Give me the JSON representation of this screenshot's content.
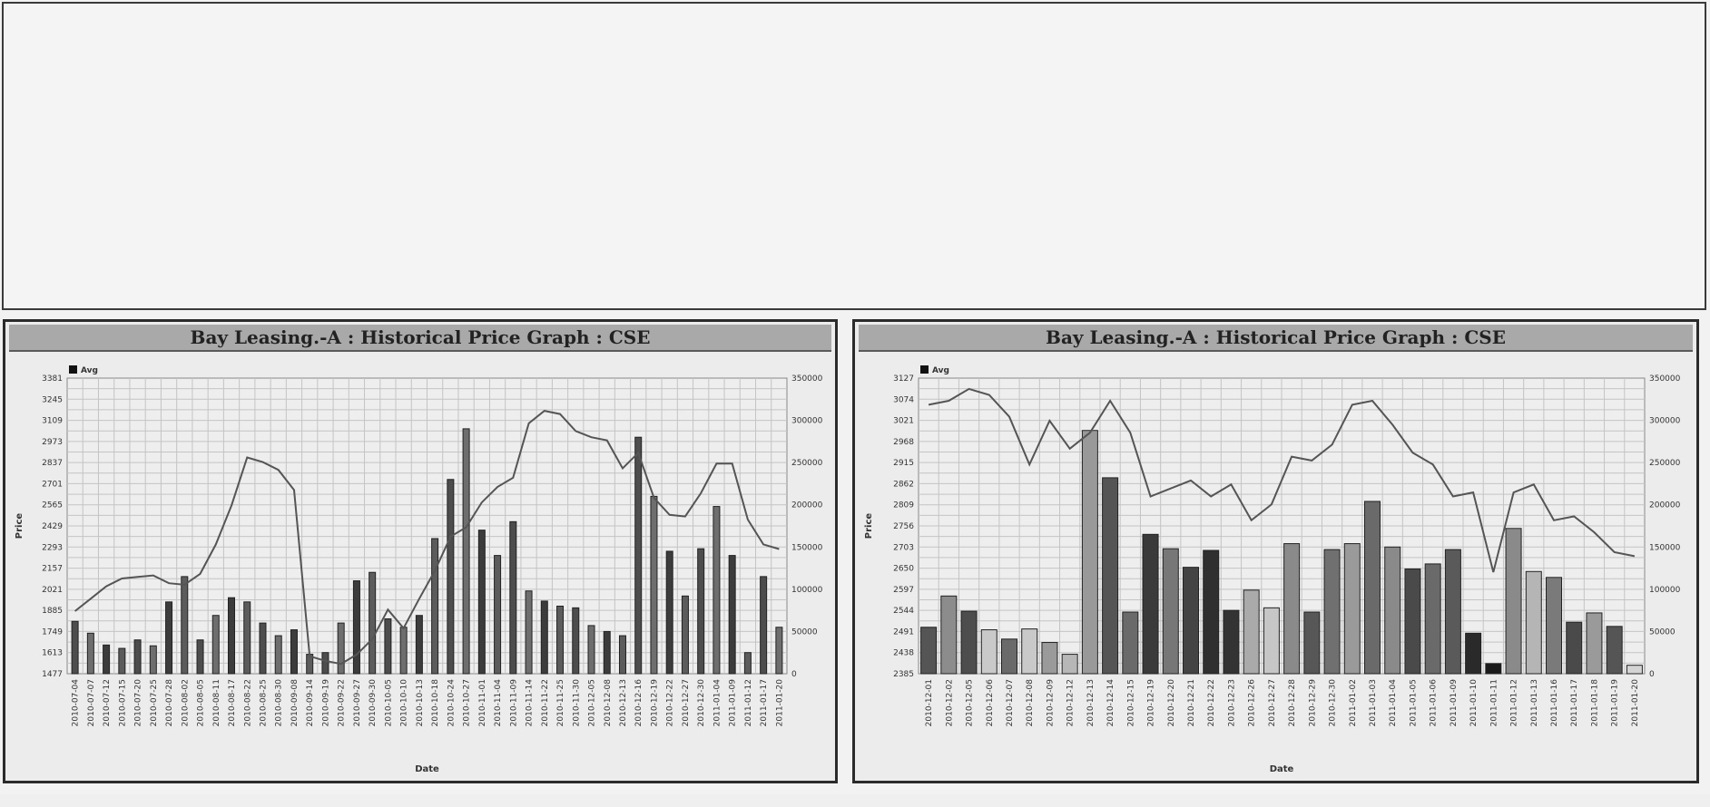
{
  "chart_data": [
    {
      "type": "bar",
      "title": "Bay Leasing.-A : Historical Price Graph : CSE",
      "legend": "Avg",
      "legend_position": "top-left",
      "xlabel": "Date",
      "ylabel": "Price",
      "grid": true,
      "y_ticks": [
        "1477",
        "1613",
        "1749",
        "1885",
        "2021",
        "2157",
        "2293",
        "2429",
        "2565",
        "2701",
        "2837",
        "2973",
        "3109",
        "3245",
        "3381"
      ],
      "y2_ticks": [
        "0",
        "50000",
        "100000",
        "150000",
        "200000",
        "250000",
        "300000",
        "350000"
      ],
      "ylim": [
        1477,
        3381
      ],
      "y2lim": [
        0,
        350000
      ],
      "x": [
        "2010-07-04",
        "2010-07-07",
        "2010-07-12",
        "2010-07-15",
        "2010-07-20",
        "2010-07-25",
        "2010-07-28",
        "2010-08-02",
        "2010-08-05",
        "2010-08-11",
        "2010-08-17",
        "2010-08-22",
        "2010-08-25",
        "2010-08-30",
        "2010-09-08",
        "2010-09-14",
        "2010-09-19",
        "2010-09-22",
        "2010-09-27",
        "2010-09-30",
        "2010-10-05",
        "2010-10-10",
        "2010-10-13",
        "2010-10-18",
        "2010-10-24",
        "2010-10-27",
        "2010-11-01",
        "2010-11-04",
        "2010-11-09",
        "2010-11-14",
        "2010-11-22",
        "2010-11-25",
        "2010-11-30",
        "2010-12-05",
        "2010-12-08",
        "2010-12-13",
        "2010-12-16",
        "2010-12-19",
        "2010-12-22",
        "2010-12-27",
        "2010-12-30",
        "2011-01-04",
        "2011-01-09",
        "2011-01-12",
        "2011-01-17",
        "2011-01-20"
      ],
      "line_values": [
        1880,
        1960,
        2040,
        2090,
        2100,
        2110,
        2060,
        2050,
        2120,
        2310,
        2560,
        2870,
        2840,
        2790,
        2660,
        1590,
        1560,
        1540,
        1600,
        1700,
        1890,
        1770,
        1960,
        2140,
        2360,
        2420,
        2580,
        2680,
        2740,
        3090,
        3170,
        3150,
        3040,
        3000,
        2980,
        2800,
        2900,
        2610,
        2500,
        2490,
        2640,
        2830,
        2830,
        2470,
        2310,
        2280
      ],
      "bar_values": [
        62000,
        48000,
        34000,
        30000,
        40000,
        33000,
        85000,
        115000,
        40000,
        69000,
        90000,
        85000,
        60000,
        45000,
        52000,
        23000,
        25000,
        60000,
        110000,
        120000,
        65000,
        55000,
        69000,
        160000,
        230000,
        290000,
        170000,
        140000,
        180000,
        98000,
        86000,
        80000,
        78000,
        57000,
        50000,
        45000,
        280000,
        210000,
        145000,
        92000,
        148000,
        198000,
        140000,
        25000,
        115000,
        55000
      ]
    },
    {
      "type": "bar",
      "title": "Bay Leasing.-A : Historical Price Graph : CSE",
      "legend": "Avg",
      "legend_position": "top-left",
      "xlabel": "Date",
      "ylabel": "Price",
      "grid": true,
      "y_ticks": [
        "2385",
        "2438",
        "2491",
        "2544",
        "2597",
        "2650",
        "2703",
        "2756",
        "2809",
        "2862",
        "2915",
        "2968",
        "3021",
        "3074",
        "3127"
      ],
      "y2_ticks": [
        "0",
        "50000",
        "100000",
        "150000",
        "200000",
        "250000",
        "300000",
        "350000"
      ],
      "ylim": [
        2385,
        3127
      ],
      "y2lim": [
        0,
        350000
      ],
      "x": [
        "2010-12-01",
        "2010-12-02",
        "2010-12-05",
        "2010-12-06",
        "2010-12-07",
        "2010-12-08",
        "2010-12-09",
        "2010-12-12",
        "2010-12-13",
        "2010-12-14",
        "2010-12-15",
        "2010-12-19",
        "2010-12-20",
        "2010-12-21",
        "2010-12-22",
        "2010-12-23",
        "2010-12-26",
        "2010-12-27",
        "2010-12-28",
        "2010-12-29",
        "2010-12-30",
        "2011-01-02",
        "2011-01-03",
        "2011-01-04",
        "2011-01-05",
        "2011-01-06",
        "2011-01-09",
        "2011-01-10",
        "2011-01-11",
        "2011-01-12",
        "2011-01-13",
        "2011-01-16",
        "2011-01-17",
        "2011-01-18",
        "2011-01-19",
        "2011-01-20"
      ],
      "line_values": [
        3060,
        3070,
        3100,
        3085,
        3030,
        2910,
        3020,
        2950,
        2990,
        3070,
        2990,
        2830,
        2850,
        2870,
        2830,
        2860,
        2770,
        2810,
        2930,
        2920,
        2960,
        3060,
        3070,
        3010,
        2940,
        2910,
        2830,
        2840,
        2640,
        2840,
        2860,
        2770,
        2780,
        2740,
        2690,
        2680
      ],
      "bar_values": [
        55000,
        92000,
        74000,
        52000,
        41000,
        53000,
        37000,
        23000,
        288000,
        232000,
        73000,
        165000,
        148000,
        126000,
        146000,
        75000,
        99000,
        78000,
        154000,
        73000,
        147000,
        154000,
        204000,
        150000,
        124000,
        130000,
        147000,
        48000,
        12000,
        172000,
        121000,
        114000,
        61000,
        72000,
        56000,
        10000
      ],
      "bar_colors": [
        "#555555",
        "#8c8c8c",
        "#4d4d4d",
        "#c9c9c9",
        "#6a6a6a",
        "#c9c9c9",
        "#9a9a9a",
        "#b7b7b7",
        "#999999",
        "#555555",
        "#6a6a6a",
        "#3a3a3a",
        "#777777",
        "#444444",
        "#2f2f2f",
        "#333333",
        "#aaaaaa",
        "#c6c6c6",
        "#8a8a8a",
        "#575757",
        "#707070",
        "#9a9a9a",
        "#6a6a6a",
        "#8a8a8a",
        "#4a4a4a",
        "#6a6a6a",
        "#5a5a5a",
        "#2a2a2a",
        "#1a1a1a",
        "#8a8a8a",
        "#b5b5b5",
        "#7a7a7a",
        "#4a4a4a",
        "#9a9a9a",
        "#555555",
        "#d4d4d4"
      ]
    }
  ]
}
